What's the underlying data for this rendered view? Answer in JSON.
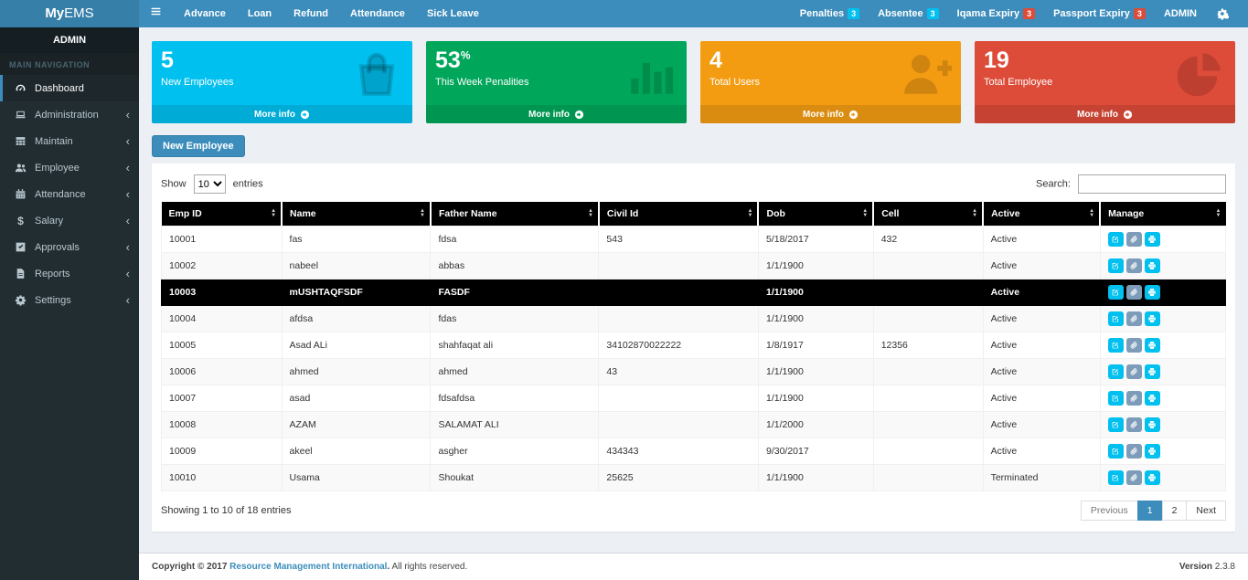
{
  "brand": {
    "bold": "My",
    "light": "EMS"
  },
  "navbar": {
    "links": [
      "Advance",
      "Loan",
      "Refund",
      "Attendance",
      "Sick Leave"
    ],
    "right": [
      {
        "label": "Penalties",
        "badge": "3",
        "badge_color": "#00c0ef"
      },
      {
        "label": "Absentee",
        "badge": "3",
        "badge_color": "#00c0ef"
      },
      {
        "label": "Iqama Expiry",
        "badge": "3",
        "badge_color": "#dd4b39"
      },
      {
        "label": "Passport Expiry",
        "badge": "3",
        "badge_color": "#dd4b39"
      },
      {
        "label": "ADMIN"
      }
    ]
  },
  "sidebar": {
    "user": "ADMIN",
    "section": "MAIN NAVIGATION",
    "items": [
      {
        "label": "Dashboard",
        "icon": "dashboard-icon",
        "active": true
      },
      {
        "label": "Administration",
        "icon": "laptop-icon"
      },
      {
        "label": "Maintain",
        "icon": "table-icon"
      },
      {
        "label": "Employee",
        "icon": "users-icon"
      },
      {
        "label": "Attendance",
        "icon": "calendar-icon"
      },
      {
        "label": "Salary",
        "icon": "dollar-icon"
      },
      {
        "label": "Approvals",
        "icon": "check-square-icon"
      },
      {
        "label": "Reports",
        "icon": "file-icon"
      },
      {
        "label": "Settings",
        "icon": "gear-icon"
      }
    ]
  },
  "infoboxes": [
    {
      "value": "5",
      "label": "New Employees",
      "more": "More info",
      "color": "#00c0ef",
      "icon": "shopping-bag-icon"
    },
    {
      "value": "53",
      "suffix": "%",
      "label": "This Week Penalities",
      "more": "More info",
      "color": "#00a65a",
      "icon": "bar-chart-icon"
    },
    {
      "value": "4",
      "label": "Total Users",
      "more": "More info",
      "color": "#f39c12",
      "icon": "user-plus-icon"
    },
    {
      "value": "19",
      "label": "Total Employee",
      "more": "More info",
      "color": "#dd4b39",
      "icon": "pie-chart-icon"
    }
  ],
  "toolbar": {
    "new_employee_label": "New Employee"
  },
  "table": {
    "show_label": "Show",
    "entries_label": "entries",
    "page_size": "10",
    "search_label": "Search:",
    "columns": [
      "Emp ID",
      "Name",
      "Father Name",
      "Civil Id",
      "Dob",
      "Cell",
      "Active",
      "Manage"
    ],
    "rows": [
      {
        "cells": [
          "10001",
          "fas",
          "fdsa",
          "543",
          "5/18/2017",
          "432",
          "Active"
        ],
        "selected": false
      },
      {
        "cells": [
          "10002",
          "nabeel",
          "abbas",
          "",
          "1/1/1900",
          "",
          "Active"
        ],
        "selected": false
      },
      {
        "cells": [
          "10003",
          "mUSHTAQFSDF",
          "FASDF",
          "",
          "1/1/1900",
          "",
          "Active"
        ],
        "selected": true
      },
      {
        "cells": [
          "10004",
          "afdsa",
          "fdas",
          "",
          "1/1/1900",
          "",
          "Active"
        ],
        "selected": false
      },
      {
        "cells": [
          "10005",
          "Asad ALi",
          "shahfaqat ali",
          "34102870022222",
          "1/8/1917",
          "12356",
          "Active"
        ],
        "selected": false
      },
      {
        "cells": [
          "10006",
          "ahmed",
          "ahmed",
          "43",
          "1/1/1900",
          "",
          "Active"
        ],
        "selected": false
      },
      {
        "cells": [
          "10007",
          "asad",
          "fdsafdsa",
          "",
          "1/1/1900",
          "",
          "Active"
        ],
        "selected": false
      },
      {
        "cells": [
          "10008",
          "AZAM",
          "SALAMAT ALI",
          "",
          "1/1/2000",
          "",
          "Active"
        ],
        "selected": false
      },
      {
        "cells": [
          "10009",
          "akeel",
          "asgher",
          "434343",
          "9/30/2017",
          "",
          "Active"
        ],
        "selected": false
      },
      {
        "cells": [
          "10010",
          "Usama",
          "Shoukat",
          "25625",
          "1/1/1900",
          "",
          "Terminated"
        ],
        "selected": false
      }
    ],
    "manage_buttons": [
      {
        "name": "edit",
        "icon": "edit-icon",
        "color": "#00c0ef"
      },
      {
        "name": "attach",
        "icon": "paperclip-icon",
        "color": "#7d9cb9"
      },
      {
        "name": "print",
        "icon": "print-icon",
        "color": "#00c0ef"
      }
    ],
    "summary": "Showing 1 to 10 of 18 entries",
    "pagination": {
      "previous": "Previous",
      "pages": [
        "1",
        "2"
      ],
      "active": "1",
      "next": "Next"
    }
  },
  "footer": {
    "copyright_prefix": "Copyright © 2017",
    "link": "Resource Management International",
    "link_suffix": ".",
    "rights": "All rights reserved.",
    "version_label": "Version",
    "version": "2.3.8"
  }
}
